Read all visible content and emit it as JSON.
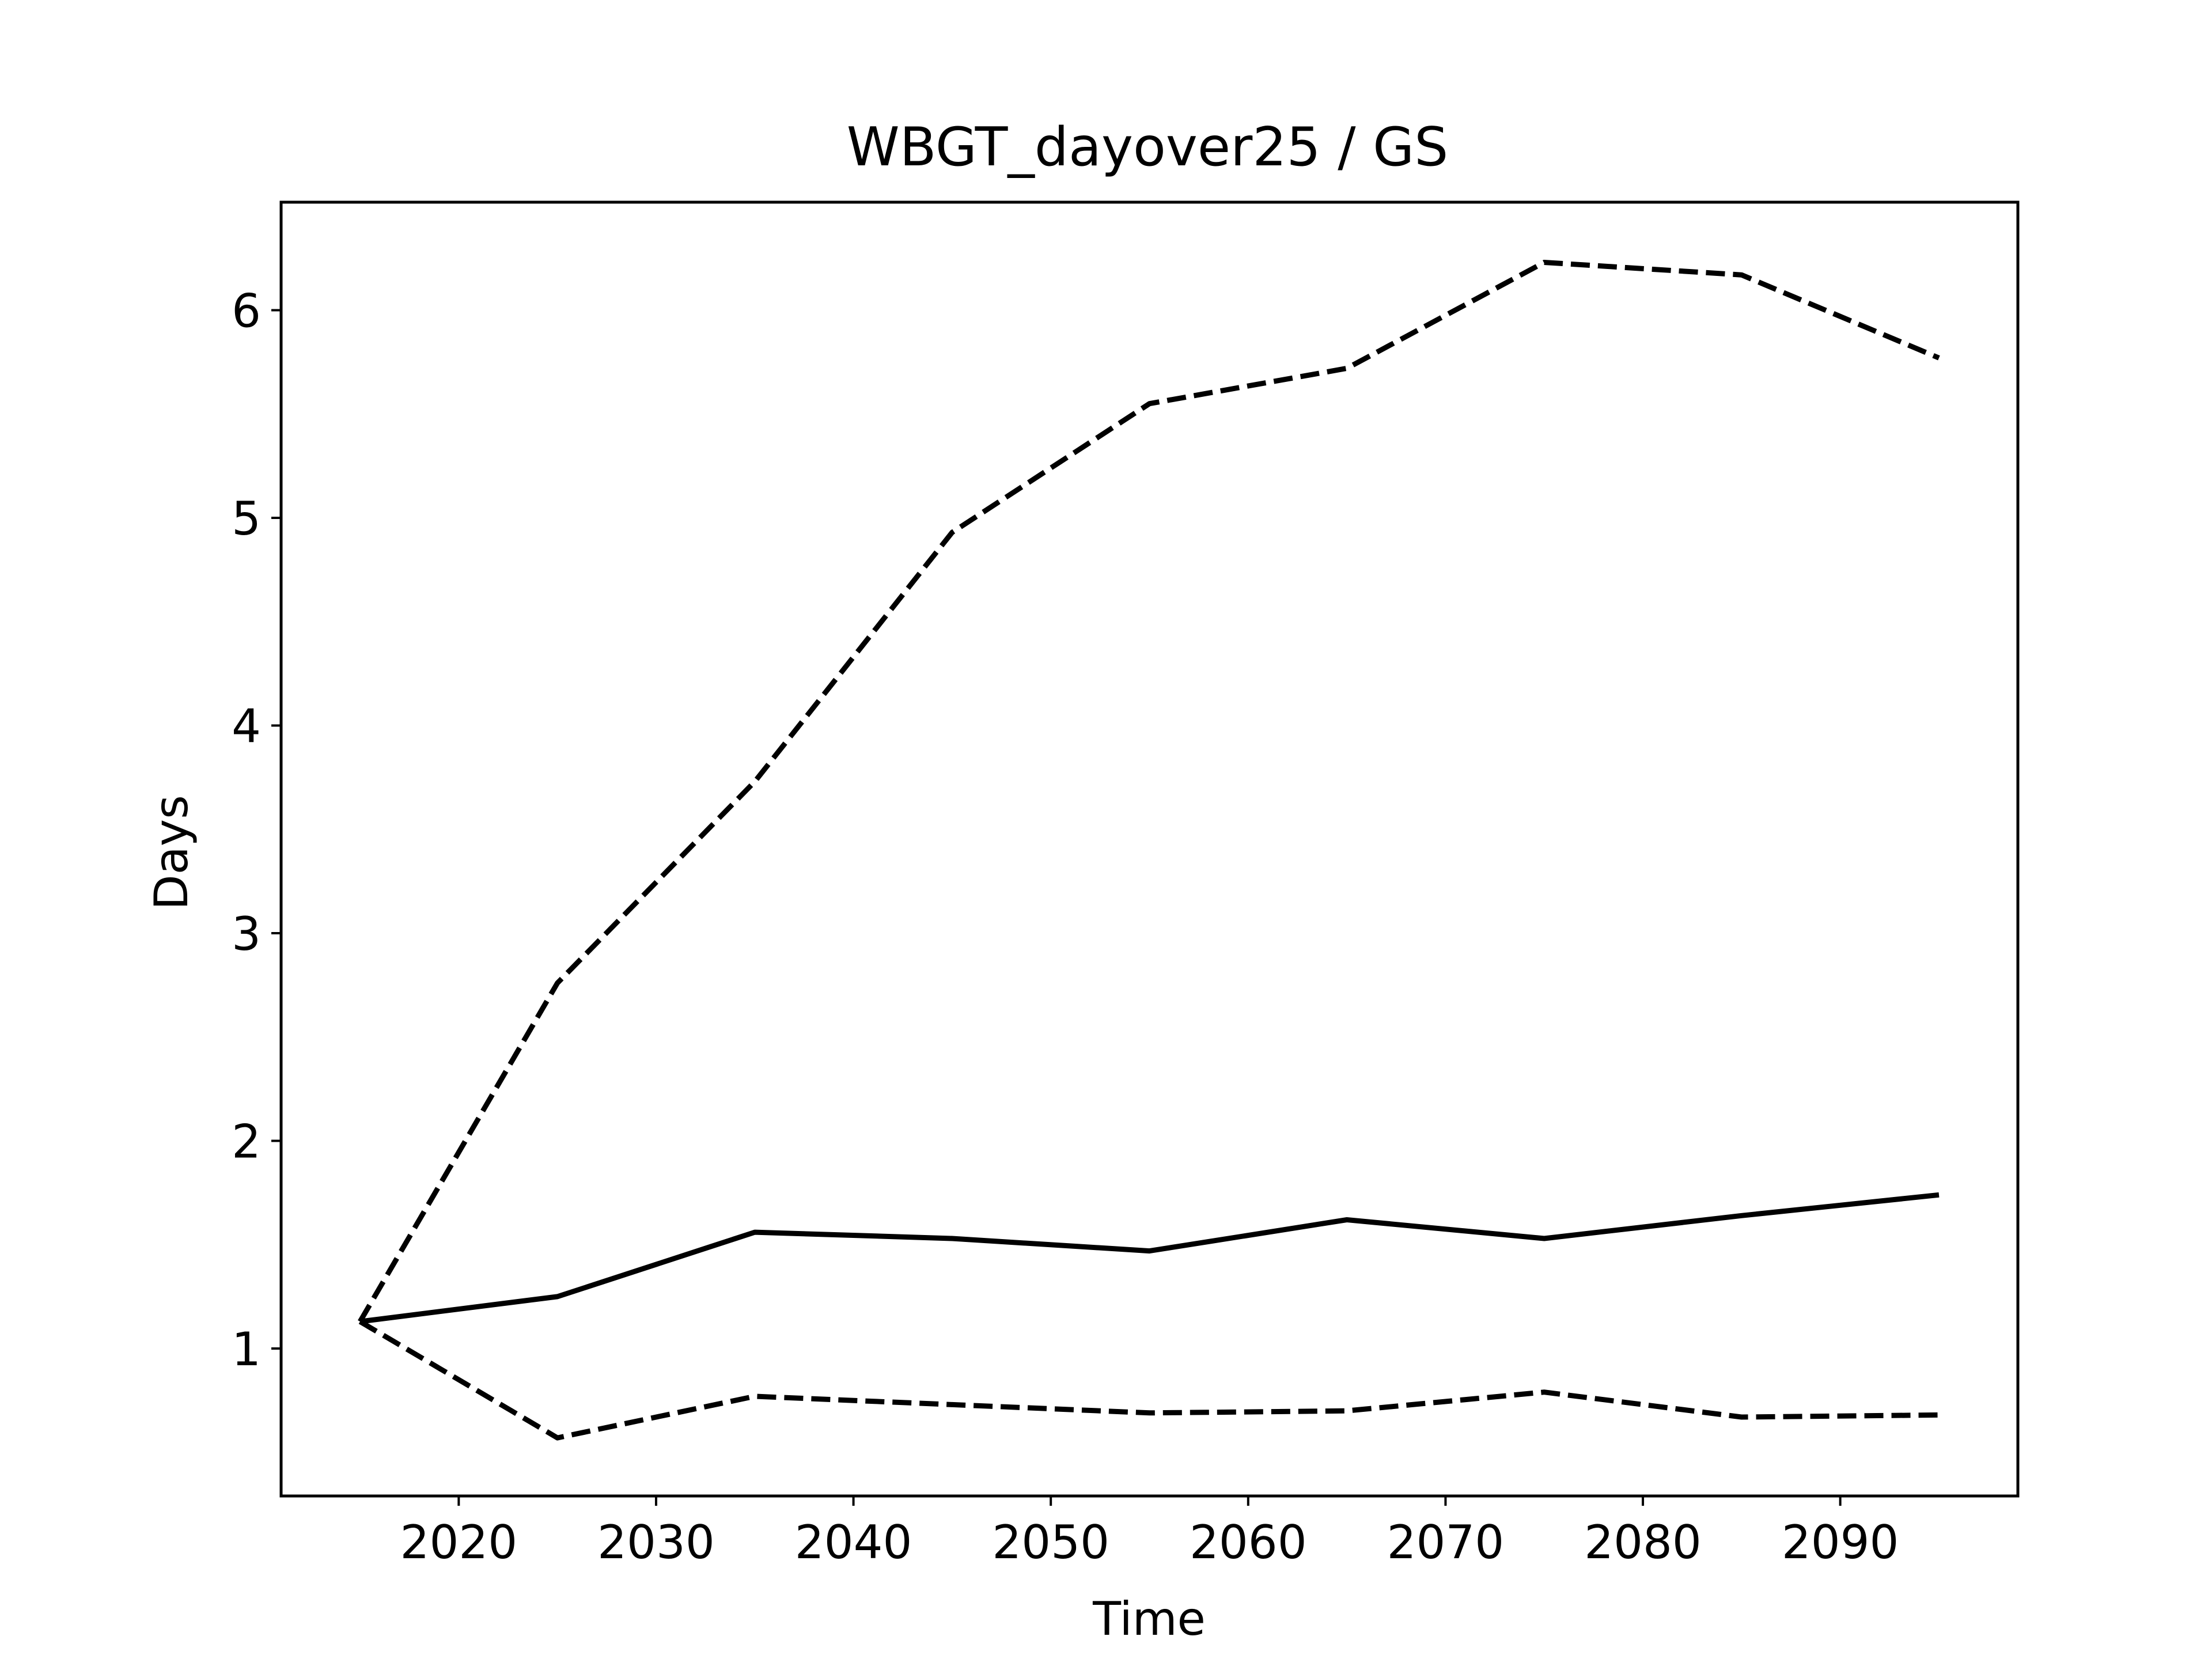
{
  "chart_data": {
    "type": "line",
    "title": "WBGT_dayover25 / GS",
    "xlabel": "Time",
    "ylabel": "Days",
    "x": [
      2015,
      2025,
      2035,
      2045,
      2055,
      2065,
      2075,
      2085,
      2095
    ],
    "xlim": [
      2011,
      2099
    ],
    "ylim": [
      0.29,
      6.52
    ],
    "xticks": [
      2020,
      2030,
      2040,
      2050,
      2060,
      2070,
      2080,
      2090
    ],
    "yticks": [
      1,
      2,
      3,
      4,
      5,
      6
    ],
    "grid": false,
    "legend": "none",
    "series": [
      {
        "style": "solid",
        "color": "#000000",
        "values": [
          1.13,
          1.25,
          1.56,
          1.53,
          1.47,
          1.62,
          1.53,
          1.64,
          1.74
        ]
      },
      {
        "style": "dashed",
        "color": "#000000",
        "values": [
          1.13,
          2.76,
          3.73,
          4.93,
          5.55,
          5.72,
          6.23,
          6.17,
          5.77
        ]
      },
      {
        "style": "dashed",
        "color": "#000000",
        "values": [
          1.13,
          0.57,
          0.77,
          0.73,
          0.69,
          0.7,
          0.79,
          0.67,
          0.68
        ]
      }
    ]
  }
}
